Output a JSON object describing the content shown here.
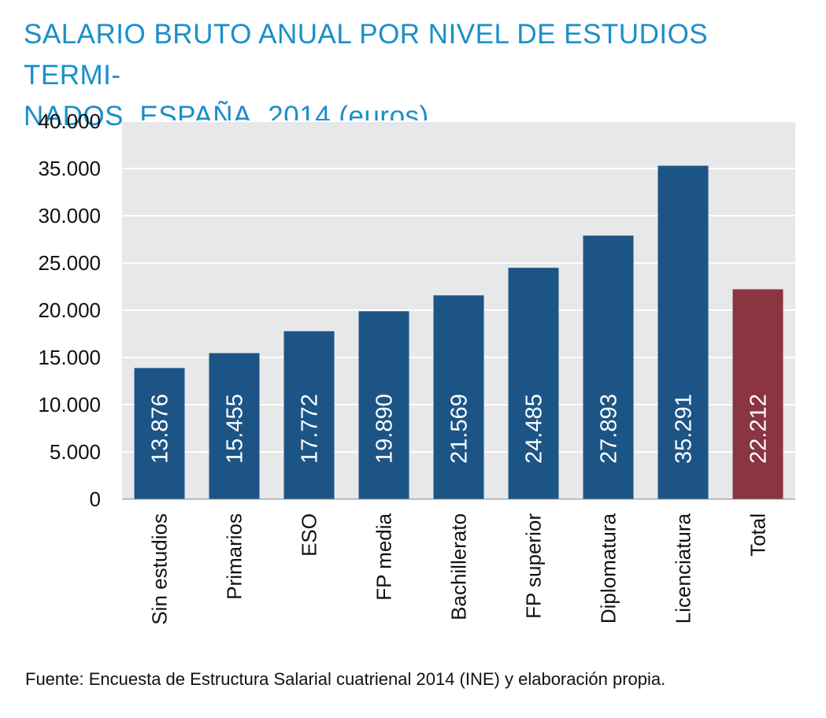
{
  "title_lines": [
    "SALARIO BRUTO ANUAL POR NIVEL DE ESTUDIOS TERMI-",
    "NADOS. ESPAÑA. 2014 (euros)"
  ],
  "source": "Fuente: Encuesta de Estructura Salarial cuatrienal 2014 (INE) y elaboración propia.",
  "colors": {
    "bar": "#1d5486",
    "total_bar": "#8b3442",
    "plot_bg": "#e7e8ea",
    "title": "#1a8fc9"
  },
  "chart_data": {
    "type": "bar",
    "title": "SALARIO BRUTO ANUAL POR NIVEL DE ESTUDIOS TERMINADOS. ESPAÑA. 2014 (euros)",
    "categories": [
      "Sin estudios",
      "Primarios",
      "ESO",
      "FP media",
      "Bachillerato",
      "FP superior",
      "Diplomatura",
      "Licenciatura",
      "Total"
    ],
    "values": [
      13876,
      15455,
      17772,
      19890,
      21569,
      24485,
      27893,
      35291,
      22212
    ],
    "data_labels": [
      "13.876",
      "15.455",
      "17.772",
      "19.890",
      "21.569",
      "24.485",
      "27.893",
      "35.291",
      "22.212"
    ],
    "yticks": [
      0,
      5000,
      10000,
      15000,
      20000,
      25000,
      30000,
      35000,
      40000
    ],
    "ytick_labels": [
      "0",
      "5.000",
      "10.000",
      "15.000",
      "20.000",
      "25.000",
      "30.000",
      "35.000",
      "40.000"
    ],
    "ylim": [
      0,
      40000
    ],
    "grid": true,
    "legend": "none"
  }
}
